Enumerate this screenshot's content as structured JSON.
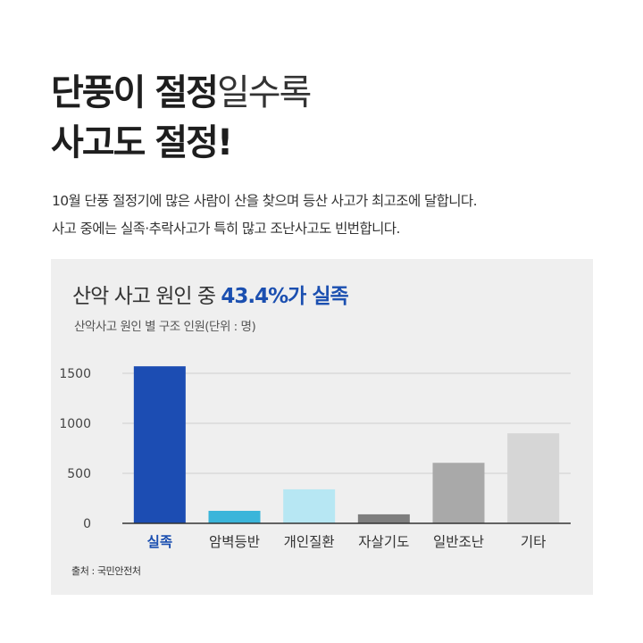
{
  "headline": {
    "line1_bold": "단풍이 절정",
    "line1_light": "일수록",
    "line2_bold": "사고도 절정!"
  },
  "description": {
    "line1": "10월 단풍 절정기에 많은 사람이 산을 찾으며 등산 사고가 최고조에 달합니다.",
    "line2": "사고 중에는 실족·추락사고가 특히 많고 조난사고도 빈번합니다."
  },
  "chart_title": {
    "prefix": "산악 사고 원인 중 ",
    "highlight": "43.4%가 실족"
  },
  "chart_subtitle": "산악사고 원인 별 구조 인원(단위 : 명)",
  "source": "출처 : 국민안전처",
  "colors": {
    "highlight": "#1b4fb0",
    "grid": "#cfcfcf",
    "axis": "#333333",
    "card_bg": "#efefef"
  },
  "chart_data": {
    "type": "bar",
    "categories": [
      "실족",
      "암벽등반",
      "개인질환",
      "자살기도",
      "일반조난",
      "기타"
    ],
    "values": [
      1570,
      125,
      340,
      90,
      605,
      900
    ],
    "bar_colors": [
      "#1c4db3",
      "#3ab5da",
      "#b7e7f3",
      "#7e7e7e",
      "#a9a9a9",
      "#d6d6d6"
    ],
    "highlight_category_color": "#1b4fb0",
    "yticks": [
      0,
      500,
      1000,
      1500
    ],
    "ylim": [
      0,
      1500
    ],
    "grid": true,
    "title": "산악 사고 원인 중 43.4%가 실족",
    "subtitle": "산악사고 원인 별 구조 인원(단위 : 명)"
  }
}
